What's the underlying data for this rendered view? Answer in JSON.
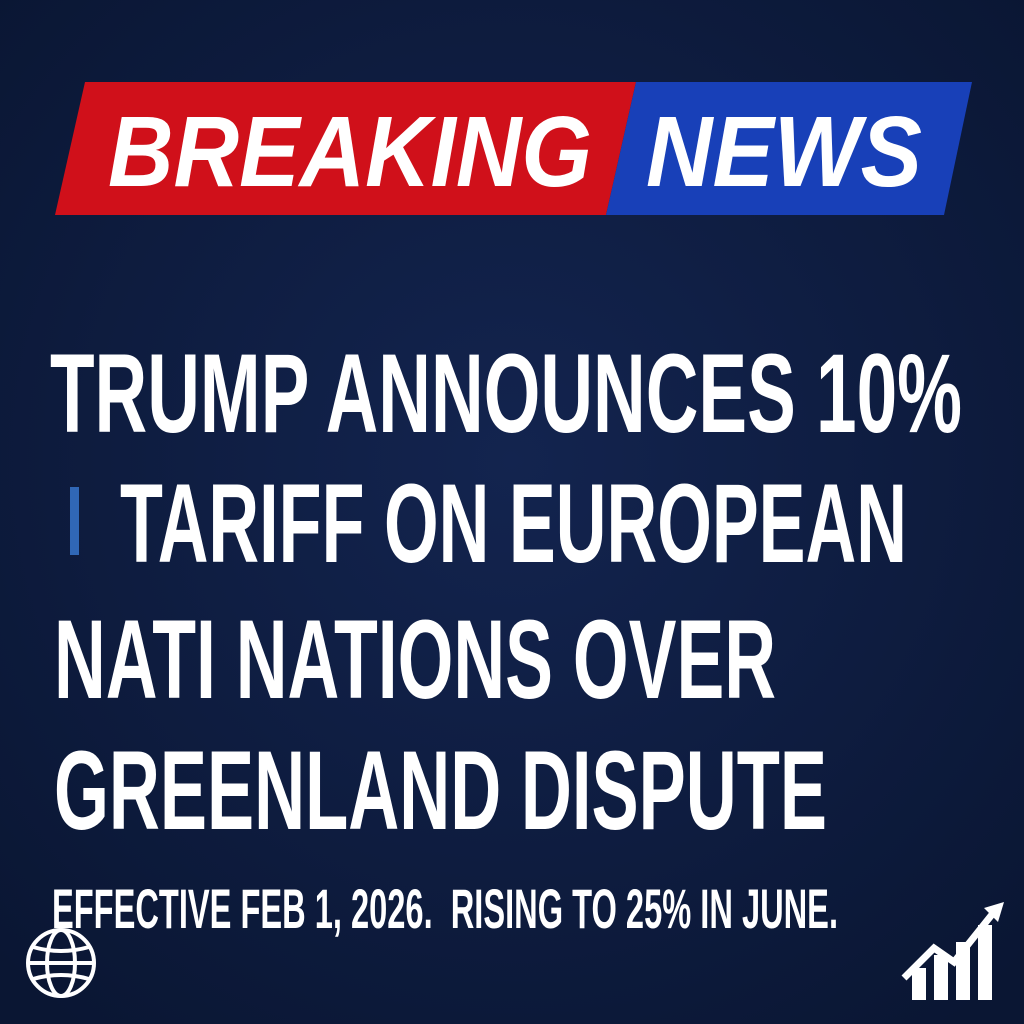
{
  "banner": {
    "left": "BREAKING",
    "right": "NEWS"
  },
  "headline": {
    "lines": [
      "TRUMP ANNOUNCES 10%",
      "TARIFF ON EUROPEAN",
      "NATI NATIONS OVER",
      "GREENLAND DISPUTE"
    ]
  },
  "subline": "EFFECTIVE FEB 1, 2026.  RISING TO 25% IN JUNE."
}
